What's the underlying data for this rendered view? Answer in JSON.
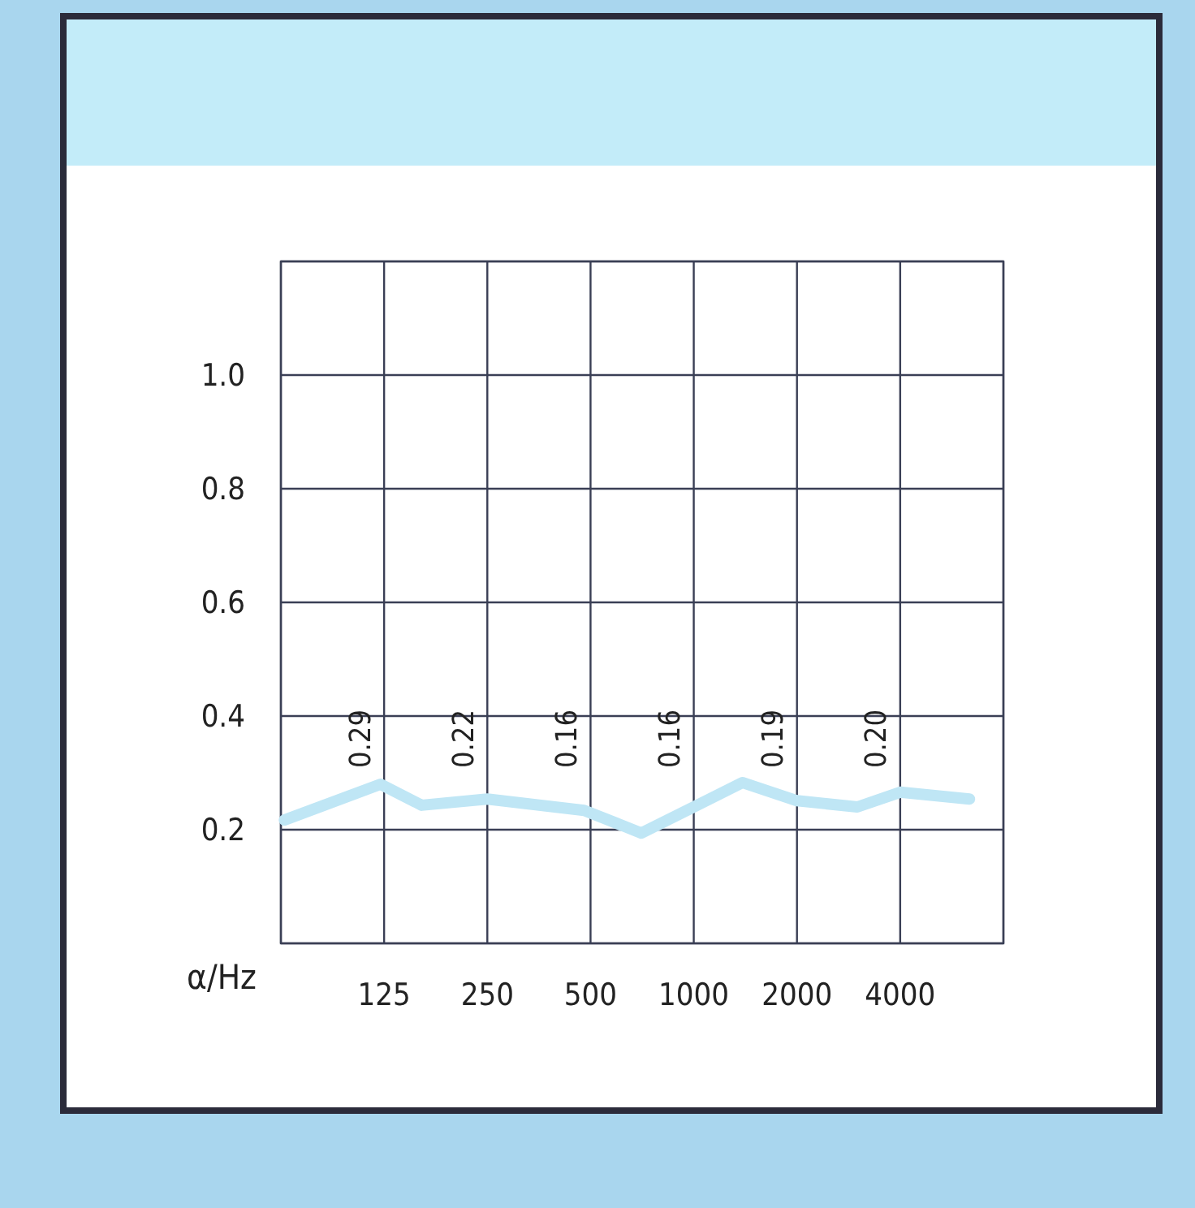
{
  "chart_data": {
    "type": "line",
    "xlabel": "α/Hz",
    "log": "x",
    "xlim": [
      62.5,
      8000
    ],
    "xticks": [
      {
        "value": 62.5,
        "label": null
      },
      125,
      250,
      500,
      1000,
      2000,
      4000,
      {
        "value": 8000,
        "label": null
      }
    ],
    "ylim": [
      0,
      1.2
    ],
    "yticks": [
      {
        "value": 0,
        "label": null
      },
      0.2,
      0.4,
      0.6,
      0.8,
      {
        "value": 1,
        "label": "1.0"
      },
      {
        "value": 1.2,
        "label": null
      }
    ],
    "grid": true,
    "marker": "none",
    "line_style": "solid",
    "series": [
      {
        "color": "#bfe6f5",
        "x": [
          64,
          122,
          161,
          250,
          479,
          703,
          1000,
          1386,
          2000,
          3000,
          4000,
          6370
        ],
        "values": [
          0.217,
          0.28,
          0.243,
          0.254,
          0.234,
          0.194,
          0.24,
          0.283,
          0.251,
          0.24,
          0.266,
          0.254
        ]
      }
    ],
    "annotations": [
      "0.29",
      "0.22",
      "0.16",
      "0.16",
      "0.19",
      "0.20"
    ]
  }
}
